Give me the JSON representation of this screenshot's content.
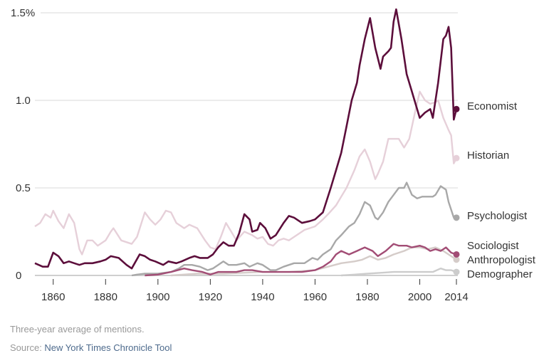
{
  "chart_data": {
    "type": "line",
    "title": "",
    "xlabel": "",
    "ylabel": "",
    "xlim": [
      1853,
      2014
    ],
    "ylim": [
      0,
      1.5
    ],
    "grid": true,
    "y_ticks": [
      {
        "v": 0,
        "label": "0"
      },
      {
        "v": 0.5,
        "label": "0.5"
      },
      {
        "v": 1.0,
        "label": "1.0"
      },
      {
        "v": 1.5,
        "label": "1.5%"
      }
    ],
    "x_ticks": [
      {
        "v": 1860,
        "label": "1860"
      },
      {
        "v": 1880,
        "label": "1880"
      },
      {
        "v": 1900,
        "label": "1900"
      },
      {
        "v": 1920,
        "label": "1920"
      },
      {
        "v": 1940,
        "label": "1940"
      },
      {
        "v": 1960,
        "label": "1960"
      },
      {
        "v": 1980,
        "label": "1980"
      },
      {
        "v": 2000,
        "label": "2000"
      },
      {
        "v": 2014,
        "label": "2014"
      }
    ],
    "legend": "direct labels at right",
    "series": [
      {
        "name": "Historian",
        "color": "#e6d0d9",
        "label_value": 0.67,
        "points": [
          [
            1853,
            0.28
          ],
          [
            1855,
            0.3
          ],
          [
            1857,
            0.35
          ],
          [
            1859,
            0.33
          ],
          [
            1860,
            0.37
          ],
          [
            1862,
            0.31
          ],
          [
            1864,
            0.27
          ],
          [
            1866,
            0.35
          ],
          [
            1868,
            0.3
          ],
          [
            1870,
            0.15
          ],
          [
            1871,
            0.12
          ],
          [
            1873,
            0.2
          ],
          [
            1875,
            0.2
          ],
          [
            1877,
            0.17
          ],
          [
            1880,
            0.2
          ],
          [
            1882,
            0.25
          ],
          [
            1883,
            0.27
          ],
          [
            1886,
            0.2
          ],
          [
            1890,
            0.18
          ],
          [
            1892,
            0.22
          ],
          [
            1895,
            0.36
          ],
          [
            1897,
            0.32
          ],
          [
            1899,
            0.29
          ],
          [
            1901,
            0.32
          ],
          [
            1903,
            0.37
          ],
          [
            1905,
            0.36
          ],
          [
            1907,
            0.3
          ],
          [
            1910,
            0.27
          ],
          [
            1912,
            0.29
          ],
          [
            1915,
            0.27
          ],
          [
            1918,
            0.2
          ],
          [
            1920,
            0.16
          ],
          [
            1922,
            0.15
          ],
          [
            1924,
            0.22
          ],
          [
            1926,
            0.3
          ],
          [
            1928,
            0.25
          ],
          [
            1930,
            0.2
          ],
          [
            1933,
            0.25
          ],
          [
            1936,
            0.23
          ],
          [
            1938,
            0.21
          ],
          [
            1940,
            0.22
          ],
          [
            1942,
            0.18
          ],
          [
            1944,
            0.17
          ],
          [
            1946,
            0.2
          ],
          [
            1948,
            0.21
          ],
          [
            1950,
            0.2
          ],
          [
            1953,
            0.23
          ],
          [
            1956,
            0.26
          ],
          [
            1960,
            0.28
          ],
          [
            1963,
            0.32
          ],
          [
            1965,
            0.35
          ],
          [
            1968,
            0.4
          ],
          [
            1970,
            0.45
          ],
          [
            1972,
            0.5
          ],
          [
            1975,
            0.6
          ],
          [
            1977,
            0.68
          ],
          [
            1979,
            0.72
          ],
          [
            1981,
            0.65
          ],
          [
            1983,
            0.55
          ],
          [
            1984,
            0.58
          ],
          [
            1986,
            0.65
          ],
          [
            1988,
            0.78
          ],
          [
            1990,
            0.78
          ],
          [
            1992,
            0.78
          ],
          [
            1994,
            0.73
          ],
          [
            1996,
            0.78
          ],
          [
            1998,
            0.92
          ],
          [
            2000,
            1.05
          ],
          [
            2002,
            1.0
          ],
          [
            2004,
            0.98
          ],
          [
            2006,
            0.99
          ],
          [
            2007,
            1.0
          ],
          [
            2009,
            0.9
          ],
          [
            2011,
            0.83
          ],
          [
            2012,
            0.8
          ],
          [
            2013,
            0.64
          ],
          [
            2014,
            0.67
          ]
        ]
      },
      {
        "name": "Demographer",
        "color": "#cccccc",
        "label_value": 0.02,
        "points": [
          [
            1970,
            0
          ],
          [
            1975,
            0.005
          ],
          [
            1980,
            0.01
          ],
          [
            1985,
            0.015
          ],
          [
            1990,
            0.02
          ],
          [
            1995,
            0.02
          ],
          [
            2000,
            0.02
          ],
          [
            2005,
            0.02
          ],
          [
            2008,
            0.04
          ],
          [
            2010,
            0.03
          ],
          [
            2012,
            0.03
          ],
          [
            2014,
            0.02
          ]
        ]
      },
      {
        "name": "Anthropologist",
        "color": "#d5ccc9",
        "label_value": 0.09,
        "points": [
          [
            1905,
            0
          ],
          [
            1915,
            0.01
          ],
          [
            1925,
            0.01
          ],
          [
            1940,
            0.02
          ],
          [
            1950,
            0.02
          ],
          [
            1960,
            0.03
          ],
          [
            1965,
            0.05
          ],
          [
            1970,
            0.07
          ],
          [
            1975,
            0.08
          ],
          [
            1978,
            0.09
          ],
          [
            1981,
            0.11
          ],
          [
            1984,
            0.09
          ],
          [
            1987,
            0.1
          ],
          [
            1990,
            0.12
          ],
          [
            1994,
            0.14
          ],
          [
            1997,
            0.16
          ],
          [
            2000,
            0.16
          ],
          [
            2003,
            0.15
          ],
          [
            2006,
            0.16
          ],
          [
            2009,
            0.14
          ],
          [
            2012,
            0.11
          ],
          [
            2014,
            0.09
          ]
        ]
      },
      {
        "name": "Psychologist",
        "color": "#a8a8a8",
        "label_value": 0.33,
        "points": [
          [
            1890,
            0
          ],
          [
            1892,
            0.005
          ],
          [
            1895,
            0.01
          ],
          [
            1900,
            0.01
          ],
          [
            1905,
            0.02
          ],
          [
            1908,
            0.04
          ],
          [
            1910,
            0.06
          ],
          [
            1913,
            0.06
          ],
          [
            1916,
            0.05
          ],
          [
            1919,
            0.03
          ],
          [
            1921,
            0.04
          ],
          [
            1923,
            0.06
          ],
          [
            1925,
            0.08
          ],
          [
            1927,
            0.06
          ],
          [
            1930,
            0.06
          ],
          [
            1933,
            0.07
          ],
          [
            1935,
            0.05
          ],
          [
            1938,
            0.07
          ],
          [
            1940,
            0.06
          ],
          [
            1943,
            0.03
          ],
          [
            1945,
            0.03
          ],
          [
            1948,
            0.05
          ],
          [
            1952,
            0.07
          ],
          [
            1956,
            0.07
          ],
          [
            1959,
            0.1
          ],
          [
            1961,
            0.09
          ],
          [
            1963,
            0.12
          ],
          [
            1966,
            0.15
          ],
          [
            1968,
            0.2
          ],
          [
            1970,
            0.23
          ],
          [
            1973,
            0.28
          ],
          [
            1975,
            0.3
          ],
          [
            1977,
            0.35
          ],
          [
            1979,
            0.42
          ],
          [
            1981,
            0.4
          ],
          [
            1983,
            0.33
          ],
          [
            1984,
            0.32
          ],
          [
            1986,
            0.36
          ],
          [
            1988,
            0.42
          ],
          [
            1990,
            0.46
          ],
          [
            1992,
            0.5
          ],
          [
            1994,
            0.5
          ],
          [
            1995,
            0.53
          ],
          [
            1997,
            0.46
          ],
          [
            1999,
            0.44
          ],
          [
            2001,
            0.45
          ],
          [
            2003,
            0.45
          ],
          [
            2005,
            0.45
          ],
          [
            2006,
            0.46
          ],
          [
            2008,
            0.51
          ],
          [
            2010,
            0.49
          ],
          [
            2011,
            0.42
          ],
          [
            2013,
            0.33
          ],
          [
            2014,
            0.33
          ]
        ]
      },
      {
        "name": "Sociologist",
        "color": "#a24d75",
        "label_value": 0.12,
        "points": [
          [
            1895,
            0
          ],
          [
            1900,
            0.005
          ],
          [
            1905,
            0.02
          ],
          [
            1910,
            0.04
          ],
          [
            1913,
            0.03
          ],
          [
            1917,
            0.02
          ],
          [
            1920,
            0.005
          ],
          [
            1923,
            0.02
          ],
          [
            1926,
            0.02
          ],
          [
            1930,
            0.02
          ],
          [
            1933,
            0.03
          ],
          [
            1936,
            0.03
          ],
          [
            1940,
            0.02
          ],
          [
            1950,
            0.02
          ],
          [
            1955,
            0.02
          ],
          [
            1960,
            0.03
          ],
          [
            1963,
            0.05
          ],
          [
            1966,
            0.08
          ],
          [
            1968,
            0.12
          ],
          [
            1970,
            0.14
          ],
          [
            1973,
            0.12
          ],
          [
            1976,
            0.14
          ],
          [
            1979,
            0.16
          ],
          [
            1982,
            0.14
          ],
          [
            1984,
            0.11
          ],
          [
            1987,
            0.14
          ],
          [
            1990,
            0.18
          ],
          [
            1992,
            0.17
          ],
          [
            1995,
            0.17
          ],
          [
            1997,
            0.16
          ],
          [
            2000,
            0.17
          ],
          [
            2002,
            0.16
          ],
          [
            2004,
            0.14
          ],
          [
            2006,
            0.15
          ],
          [
            2008,
            0.14
          ],
          [
            2010,
            0.16
          ],
          [
            2012,
            0.13
          ],
          [
            2014,
            0.12
          ]
        ]
      },
      {
        "name": "Economist",
        "color": "#5c0e3b",
        "label_value": 0.95,
        "points": [
          [
            1853,
            0.07
          ],
          [
            1856,
            0.05
          ],
          [
            1858,
            0.05
          ],
          [
            1860,
            0.13
          ],
          [
            1862,
            0.11
          ],
          [
            1864,
            0.07
          ],
          [
            1866,
            0.08
          ],
          [
            1868,
            0.07
          ],
          [
            1870,
            0.06
          ],
          [
            1872,
            0.07
          ],
          [
            1875,
            0.07
          ],
          [
            1878,
            0.08
          ],
          [
            1880,
            0.09
          ],
          [
            1882,
            0.11
          ],
          [
            1885,
            0.1
          ],
          [
            1888,
            0.06
          ],
          [
            1890,
            0.04
          ],
          [
            1893,
            0.12
          ],
          [
            1895,
            0.11
          ],
          [
            1897,
            0.09
          ],
          [
            1899,
            0.08
          ],
          [
            1902,
            0.06
          ],
          [
            1904,
            0.08
          ],
          [
            1907,
            0.07
          ],
          [
            1909,
            0.08
          ],
          [
            1912,
            0.1
          ],
          [
            1914,
            0.11
          ],
          [
            1916,
            0.1
          ],
          [
            1919,
            0.1
          ],
          [
            1921,
            0.12
          ],
          [
            1923,
            0.16
          ],
          [
            1925,
            0.19
          ],
          [
            1927,
            0.17
          ],
          [
            1929,
            0.17
          ],
          [
            1931,
            0.24
          ],
          [
            1933,
            0.35
          ],
          [
            1935,
            0.32
          ],
          [
            1936,
            0.25
          ],
          [
            1938,
            0.26
          ],
          [
            1939,
            0.3
          ],
          [
            1941,
            0.27
          ],
          [
            1943,
            0.21
          ],
          [
            1945,
            0.23
          ],
          [
            1948,
            0.3
          ],
          [
            1950,
            0.34
          ],
          [
            1952,
            0.33
          ],
          [
            1955,
            0.3
          ],
          [
            1958,
            0.31
          ],
          [
            1960,
            0.32
          ],
          [
            1963,
            0.36
          ],
          [
            1966,
            0.5
          ],
          [
            1968,
            0.6
          ],
          [
            1970,
            0.7
          ],
          [
            1972,
            0.85
          ],
          [
            1974,
            1.0
          ],
          [
            1976,
            1.1
          ],
          [
            1977,
            1.2
          ],
          [
            1979,
            1.35
          ],
          [
            1981,
            1.47
          ],
          [
            1983,
            1.3
          ],
          [
            1985,
            1.18
          ],
          [
            1986,
            1.25
          ],
          [
            1988,
            1.28
          ],
          [
            1989,
            1.3
          ],
          [
            1990,
            1.45
          ],
          [
            1991,
            1.52
          ],
          [
            1993,
            1.35
          ],
          [
            1995,
            1.15
          ],
          [
            1997,
            1.05
          ],
          [
            1999,
            0.95
          ],
          [
            2000,
            0.9
          ],
          [
            2002,
            0.93
          ],
          [
            2004,
            0.95
          ],
          [
            2005,
            0.9
          ],
          [
            2007,
            1.1
          ],
          [
            2009,
            1.35
          ],
          [
            2010,
            1.37
          ],
          [
            2011,
            1.42
          ],
          [
            2012,
            1.3
          ],
          [
            2013,
            0.89
          ],
          [
            2014,
            0.95
          ]
        ]
      }
    ]
  },
  "labels": {
    "Economist": "Economist",
    "Historian": "Historian",
    "Psychologist": "Psychologist",
    "Sociologist": "Sociologist",
    "Anthropologist": "Anthropologist",
    "Demographer": "Demographer"
  },
  "footer": {
    "note": "Three-year average of mentions.",
    "source_prefix": "Source: ",
    "source_link": "New York Times Chronicle Tool"
  }
}
